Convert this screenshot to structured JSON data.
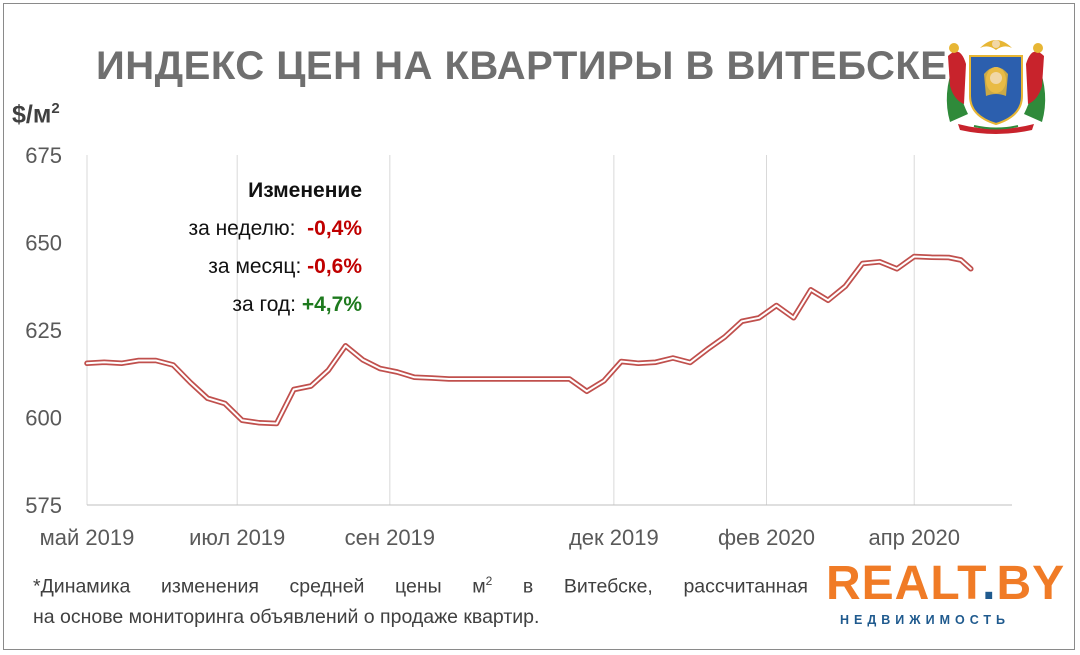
{
  "title": "ИНДЕКС ЦЕН НА КВАРТИРЫ В ВИТЕБСКЕ",
  "y_unit": "$/м",
  "y_unit_sup": "2",
  "change": {
    "header": "Изменение",
    "week_label": "за неделю:",
    "week_value": "-0,4%",
    "month_label": "за месяц:",
    "month_value": "-0,6%",
    "year_label": "за год:",
    "year_value": "+4,7%"
  },
  "footnote": {
    "line1_a": "*Динамика изменения средней цены м",
    "line1_sup": "2",
    "line1_b": " в Витебске, рассчитанная",
    "line2": "на основе мониторинга объявлений о продаже квартир."
  },
  "logo": {
    "brand_a": "REALT",
    "brand_dot": ".",
    "brand_b": "BY",
    "sub": "НЕДВИЖИМОСТЬ"
  },
  "colors": {
    "line": "#c0504d",
    "grid": "#d9d9d9",
    "negative": "#c00000",
    "positive": "#1e7a1e",
    "brand_orange": "#f07b26",
    "brand_blue": "#1f5a8e"
  },
  "chart_data": {
    "type": "line",
    "title": "ИНДЕКС ЦЕН НА КВАРТИРЫ В ВИТЕБСКЕ",
    "ylabel": "$/м2",
    "xlabel": "",
    "ylim": [
      575,
      675
    ],
    "yticks": [
      575,
      600,
      625,
      650,
      675
    ],
    "xticks": [
      "май 2019",
      "июл 2019",
      "сен 2019",
      "дек 2019",
      "фев 2020",
      "апр 2020"
    ],
    "xtick_dates": [
      "2019-05-01",
      "2019-07-01",
      "2019-09-01",
      "2019-12-01",
      "2020-02-01",
      "2020-04-01"
    ],
    "x_range": [
      "2019-05-01",
      "2020-04-20"
    ],
    "grid": "vertical",
    "series": [
      {
        "values": [
          [
            "2019-05-01",
            615.5
          ],
          [
            "2019-05-08",
            615.8
          ],
          [
            "2019-05-15",
            615.5
          ],
          [
            "2019-05-22",
            616.3
          ],
          [
            "2019-05-29",
            616.3
          ],
          [
            "2019-06-05",
            615.0
          ],
          [
            "2019-06-12",
            610.0
          ],
          [
            "2019-06-19",
            605.5
          ],
          [
            "2019-06-26",
            604.0
          ],
          [
            "2019-07-03",
            599.2
          ],
          [
            "2019-07-10",
            598.5
          ],
          [
            "2019-07-17",
            598.3
          ],
          [
            "2019-07-24",
            608.0
          ],
          [
            "2019-07-31",
            609.0
          ],
          [
            "2019-08-07",
            613.5
          ],
          [
            "2019-08-14",
            620.5
          ],
          [
            "2019-08-21",
            616.5
          ],
          [
            "2019-08-28",
            614.0
          ],
          [
            "2019-09-04",
            613.0
          ],
          [
            "2019-09-11",
            611.5
          ],
          [
            "2019-09-18",
            611.3
          ],
          [
            "2019-09-25",
            611.0
          ],
          [
            "2019-10-09",
            611.0
          ],
          [
            "2019-10-23",
            611.0
          ],
          [
            "2019-11-06",
            611.0
          ],
          [
            "2019-11-13",
            611.0
          ],
          [
            "2019-11-20",
            607.5
          ],
          [
            "2019-11-27",
            610.5
          ],
          [
            "2019-12-04",
            616.0
          ],
          [
            "2019-12-11",
            615.5
          ],
          [
            "2019-12-18",
            615.8
          ],
          [
            "2019-12-25",
            617.0
          ],
          [
            "2020-01-01",
            615.7
          ],
          [
            "2020-01-08",
            619.5
          ],
          [
            "2020-01-15",
            623.0
          ],
          [
            "2020-01-22",
            627.5
          ],
          [
            "2020-01-29",
            628.5
          ],
          [
            "2020-02-05",
            632.0
          ],
          [
            "2020-02-12",
            628.5
          ],
          [
            "2020-02-19",
            636.5
          ],
          [
            "2020-02-26",
            633.5
          ],
          [
            "2020-03-04",
            637.5
          ],
          [
            "2020-03-11",
            644.0
          ],
          [
            "2020-03-18",
            644.5
          ],
          [
            "2020-03-25",
            642.5
          ],
          [
            "2020-04-01",
            646.0
          ],
          [
            "2020-04-08",
            645.8
          ],
          [
            "2020-04-15",
            645.7
          ],
          [
            "2020-04-20",
            645.0
          ],
          [
            "2020-04-24",
            642.5
          ]
        ]
      }
    ]
  }
}
